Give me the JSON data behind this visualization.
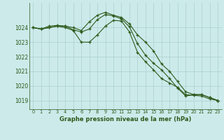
{
  "x": [
    0,
    1,
    2,
    3,
    4,
    5,
    6,
    7,
    8,
    9,
    10,
    11,
    12,
    13,
    14,
    15,
    16,
    17,
    18,
    19,
    20,
    21,
    22,
    23
  ],
  "line1": [
    1024.0,
    1023.9,
    1024.0,
    1024.1,
    1024.1,
    1024.0,
    1023.8,
    1024.4,
    1024.85,
    1025.05,
    1024.85,
    1024.7,
    1024.25,
    1023.5,
    1023.0,
    1022.4,
    1021.5,
    1021.0,
    1020.3,
    1019.6,
    1019.4,
    1019.4,
    1019.2,
    1019.0
  ],
  "line2": [
    1024.0,
    1023.9,
    1024.1,
    1024.15,
    1024.1,
    1023.85,
    1023.7,
    1023.9,
    1024.55,
    1024.9,
    1024.8,
    1024.6,
    1024.05,
    1022.9,
    1022.1,
    1021.55,
    1021.1,
    1020.5,
    1019.85,
    1019.3,
    1019.4,
    1019.4,
    1019.2,
    1019.0
  ],
  "line3": [
    1024.0,
    1023.9,
    1024.0,
    1024.1,
    1024.0,
    1023.8,
    1023.0,
    1023.0,
    1023.5,
    1024.1,
    1024.5,
    1024.45,
    1023.7,
    1022.3,
    1021.65,
    1021.1,
    1020.5,
    1020.2,
    1019.9,
    1019.4,
    1019.35,
    1019.3,
    1019.1,
    1019.0
  ],
  "line_color": "#2d5a1b",
  "bg_color": "#cceaea",
  "grid_color": "#aacfcf",
  "xlabel": "Graphe pression niveau de la mer (hPa)",
  "ylim": [
    1018.4,
    1025.7
  ],
  "yticks": [
    1019,
    1020,
    1021,
    1022,
    1023,
    1024
  ],
  "xticks": [
    0,
    1,
    2,
    3,
    4,
    5,
    6,
    7,
    8,
    9,
    10,
    11,
    12,
    13,
    14,
    15,
    16,
    17,
    18,
    19,
    20,
    21,
    22,
    23
  ],
  "marker": "+",
  "markersize": 3.5,
  "linewidth": 0.8
}
